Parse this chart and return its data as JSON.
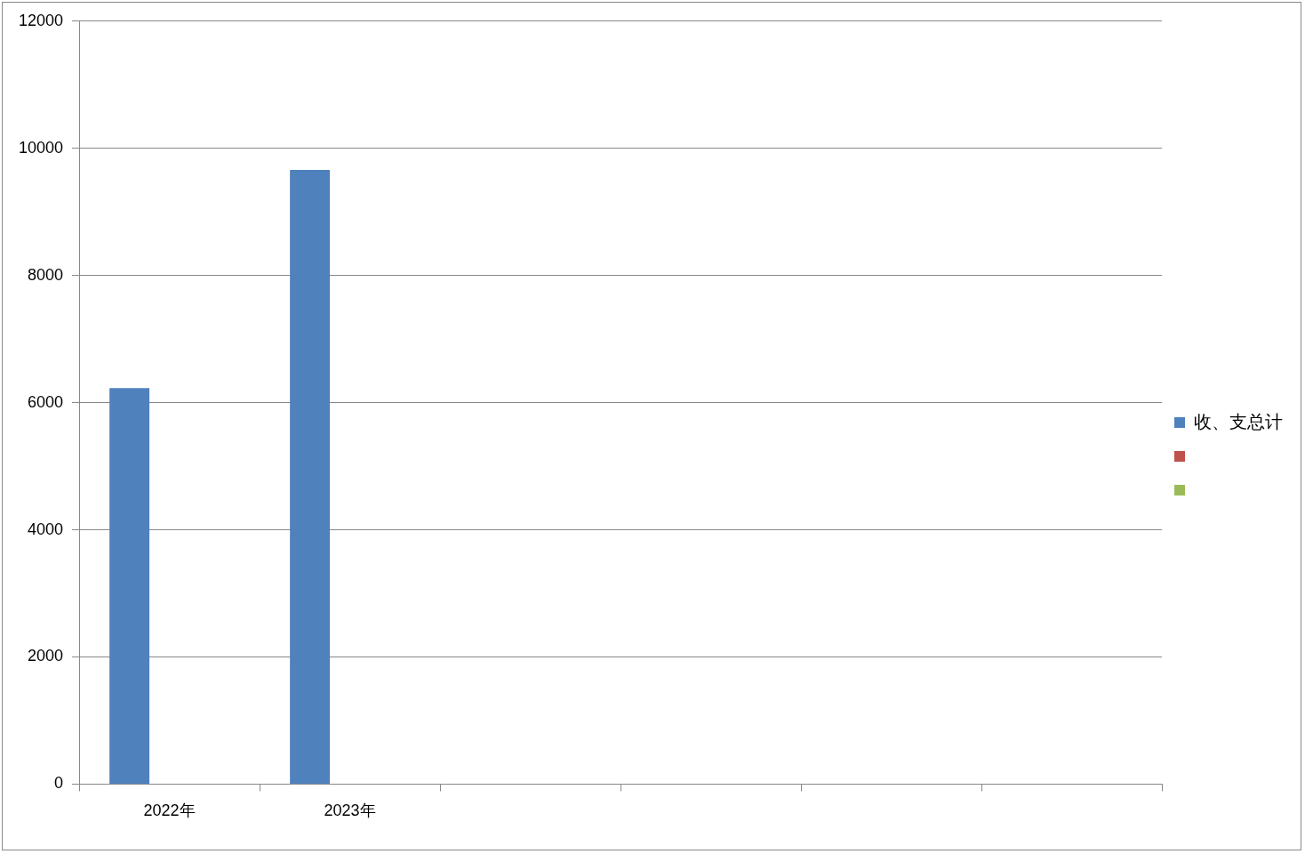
{
  "chart_data": {
    "type": "bar",
    "categories": [
      "2022年",
      "2023年",
      null,
      null,
      null,
      null
    ],
    "series": [
      {
        "name": "收、支总计",
        "color": "#4f81bd",
        "values": [
          6230,
          9660,
          null,
          null,
          null,
          null
        ]
      },
      {
        "color": "#c0504d",
        "values": [
          null,
          null,
          null,
          null,
          null,
          null
        ]
      },
      {
        "color": "#9bbb59",
        "values": [
          null,
          null,
          null,
          null,
          null,
          null
        ]
      }
    ],
    "ylim": [
      0,
      12000
    ],
    "yticks": [
      0,
      2000,
      4000,
      6000,
      8000,
      10000,
      12000
    ],
    "grid": "y",
    "legend": "right"
  }
}
